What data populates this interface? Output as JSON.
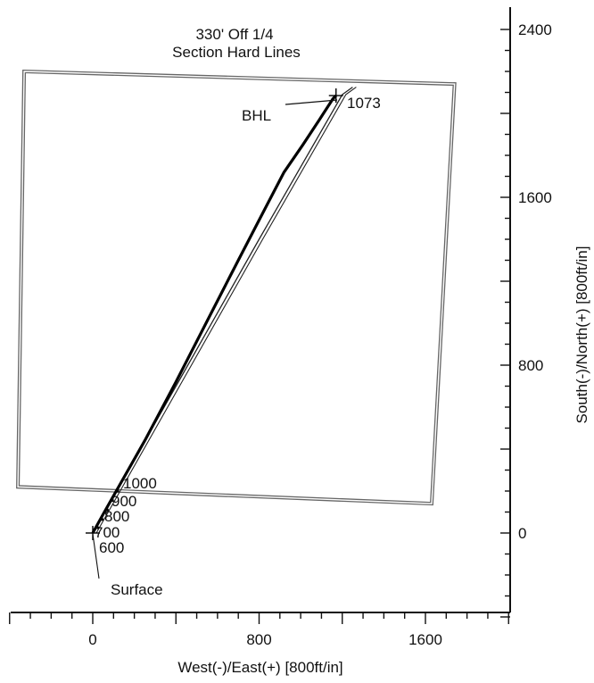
{
  "chart_data": {
    "type": "line",
    "title": "",
    "xlabel": "West(-)/East(+) [800ft/in]",
    "ylabel": "South(-)/North(+) [800ft/in]",
    "xlim": [
      -400,
      2000
    ],
    "ylim": [
      -400,
      2450
    ],
    "x_ticks": [
      0,
      800,
      1600
    ],
    "y_ticks": [
      0,
      800,
      1600,
      2400
    ],
    "x_tick_labels": [
      "0",
      "800",
      "1600"
    ],
    "y_tick_labels": [
      "0",
      "800",
      "1600",
      "2400"
    ],
    "grid": false,
    "series": [
      {
        "name": "",
        "role": "wellbore-actual",
        "x": [
          0,
          50,
          130,
          250,
          400,
          550,
          700,
          820,
          920,
          1010,
          1090,
          1155,
          1170
        ],
        "y": [
          0,
          90,
          230,
          440,
          720,
          1010,
          1300,
          1530,
          1720,
          1850,
          1970,
          2070,
          2085
        ]
      },
      {
        "name": "",
        "role": "wellbore-plan",
        "x": [
          0,
          400,
          800,
          1200,
          1250
        ],
        "y": [
          0,
          700,
          1400,
          2090,
          2125
        ]
      }
    ],
    "hard_lines": {
      "label_line1": "330' Off 1/4",
      "label_line2": "Section Hard Lines",
      "polygon_x": [
        -330,
        1740,
        1630,
        -360,
        -330
      ],
      "polygon_y": [
        2200,
        2140,
        140,
        220,
        2200
      ]
    },
    "annotations": {
      "bhl": "BHL",
      "bhl_md": "1073",
      "bhl_point": [
        1170,
        2085
      ],
      "surface": "Surface",
      "surface_point": [
        0,
        0
      ],
      "depth_marks": [
        {
          "label": "1000",
          "at": [
            120,
            200
          ]
        },
        {
          "label": "900",
          "at": [
            95,
            155
          ]
        },
        {
          "label": "800",
          "at": [
            70,
            110
          ]
        },
        {
          "label": "700",
          "at": [
            45,
            65
          ]
        },
        {
          "label": "600",
          "at": [
            25,
            25
          ]
        }
      ]
    }
  }
}
